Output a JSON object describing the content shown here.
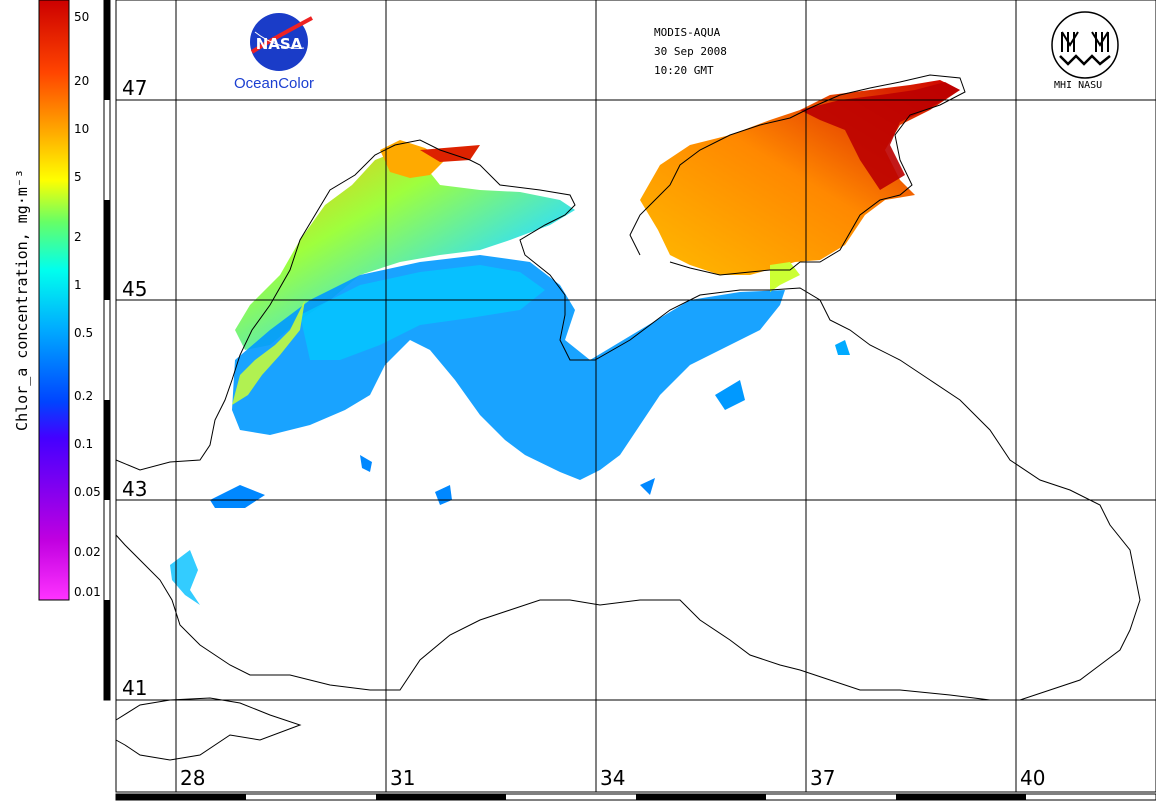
{
  "header": {
    "sensor": "MODIS-AQUA",
    "date": "30 Sep 2008",
    "time": "10:20 GMT"
  },
  "logos": {
    "nasa_wordmark": "NASA",
    "nasa_caption": "OceanColor",
    "mhi_caption": "MHI NASU"
  },
  "colorbar": {
    "title": "Chlor_a concentration, mg·m⁻³",
    "ticks": [
      "50",
      "20",
      "10",
      "5",
      "2",
      "1",
      "0.5",
      "0.2",
      "0.1",
      "0.05",
      "0.02",
      "0.01"
    ],
    "scale": "log",
    "range": [
      0.01,
      50
    ],
    "colors": [
      "#ff33ff",
      "#b000d0",
      "#3300ff",
      "#0066ff",
      "#00ccff",
      "#33ffcc",
      "#aaff00",
      "#ffff00",
      "#ffaa00",
      "#ff5500",
      "#dd0000",
      "#aa0000"
    ]
  },
  "map": {
    "latitude_labels": [
      "47",
      "45",
      "43",
      "41"
    ],
    "longitude_labels": [
      "28",
      "31",
      "34",
      "37",
      "40"
    ]
  }
}
